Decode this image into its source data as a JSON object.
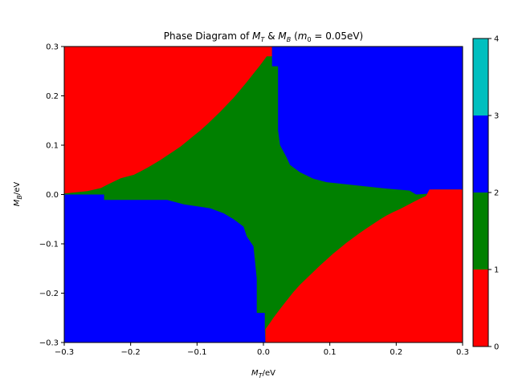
{
  "chart_data": {
    "type": "heatmap",
    "title": "Phase Diagram of M_T & M_B (m₀ = 0.05eV)",
    "title_parts": {
      "prefix": "Phase Diagram of ",
      "x_sym": "M",
      "x_sub": "T",
      "amp": " & ",
      "y_sym": "M",
      "y_sub": "B",
      "paren_open": " (",
      "m_sym": "m",
      "m_sub": "0",
      "rest": " = 0.05eV)"
    },
    "xlabel": {
      "sym": "M",
      "sub": "T",
      "unit": "/eV"
    },
    "ylabel": {
      "sym": "M",
      "sub": "B",
      "unit": "/eV"
    },
    "xlim": [
      -0.3,
      0.3
    ],
    "ylim": [
      -0.3,
      0.3
    ],
    "x_ticks": [
      "−0.3",
      "−0.2",
      "−0.1",
      "0.0",
      "0.1",
      "0.2",
      "0.3"
    ],
    "y_ticks": [
      "−0.3",
      "−0.2",
      "−0.1",
      "0.0",
      "0.1",
      "0.2",
      "0.3"
    ],
    "colorbar": {
      "range": [
        0,
        4
      ],
      "ticks": [
        "0",
        "1",
        "2",
        "3",
        "4"
      ],
      "levels": [
        {
          "from": 0,
          "to": 1,
          "color": "#ff0000"
        },
        {
          "from": 1,
          "to": 2,
          "color": "#008000"
        },
        {
          "from": 2,
          "to": 3,
          "color": "#0000ff"
        },
        {
          "from": 3,
          "to": 4,
          "color": "#00bfbf"
        }
      ]
    },
    "regions": [
      {
        "value": 0,
        "color": "#ff0000",
        "label": "upper-left",
        "points": [
          [
            -0.3,
            0.3
          ],
          [
            0.013,
            0.3
          ],
          [
            0.013,
            0.28
          ],
          [
            0.005,
            0.28
          ],
          [
            -0.005,
            0.262
          ],
          [
            -0.015,
            0.245
          ],
          [
            -0.025,
            0.228
          ],
          [
            -0.035,
            0.212
          ],
          [
            -0.045,
            0.196
          ],
          [
            -0.055,
            0.182
          ],
          [
            -0.065,
            0.168
          ],
          [
            -0.075,
            0.155
          ],
          [
            -0.085,
            0.142
          ],
          [
            -0.095,
            0.13
          ],
          [
            -0.105,
            0.119
          ],
          [
            -0.115,
            0.108
          ],
          [
            -0.125,
            0.097
          ],
          [
            -0.135,
            0.088
          ],
          [
            -0.145,
            0.079
          ],
          [
            -0.155,
            0.07
          ],
          [
            -0.165,
            0.062
          ],
          [
            -0.175,
            0.054
          ],
          [
            -0.185,
            0.047
          ],
          [
            -0.195,
            0.04
          ],
          [
            -0.215,
            0.033
          ],
          [
            -0.235,
            0.02
          ],
          [
            -0.245,
            0.013
          ],
          [
            -0.265,
            0.007
          ],
          [
            -0.3,
            0.002
          ]
        ]
      },
      {
        "value": 2,
        "color": "#0000ff",
        "label": "upper-right",
        "points": [
          [
            0.013,
            0.3
          ],
          [
            0.3,
            0.3
          ],
          [
            0.3,
            0.01
          ],
          [
            0.255,
            0.01
          ],
          [
            0.253,
            0.002
          ],
          [
            0.23,
            0.0
          ],
          [
            0.22,
            0.008
          ],
          [
            0.185,
            0.012
          ],
          [
            0.13,
            0.02
          ],
          [
            0.095,
            0.025
          ],
          [
            0.075,
            0.032
          ],
          [
            0.055,
            0.045
          ],
          [
            0.04,
            0.06
          ],
          [
            0.035,
            0.075
          ],
          [
            0.025,
            0.1
          ],
          [
            0.022,
            0.13
          ],
          [
            0.022,
            0.26
          ],
          [
            0.013,
            0.26
          ]
        ]
      },
      {
        "value": 2,
        "color": "#0000ff",
        "label": "lower-left",
        "points": [
          [
            -0.3,
            0.0
          ],
          [
            -0.24,
            0.0
          ],
          [
            -0.24,
            -0.011
          ],
          [
            -0.145,
            -0.011
          ],
          [
            -0.12,
            -0.02
          ],
          [
            -0.08,
            -0.028
          ],
          [
            -0.06,
            -0.038
          ],
          [
            -0.045,
            -0.05
          ],
          [
            -0.03,
            -0.065
          ],
          [
            -0.025,
            -0.085
          ],
          [
            -0.015,
            -0.105
          ],
          [
            -0.01,
            -0.17
          ],
          [
            -0.01,
            -0.24
          ],
          [
            0.002,
            -0.24
          ],
          [
            0.002,
            -0.27
          ],
          [
            0.003,
            -0.3
          ],
          [
            -0.3,
            -0.3
          ]
        ]
      },
      {
        "value": 0,
        "color": "#ff0000",
        "label": "lower-right",
        "points": [
          [
            0.3,
            0.01
          ],
          [
            0.3,
            -0.3
          ],
          [
            0.003,
            -0.3
          ],
          [
            0.003,
            -0.273
          ],
          [
            0.01,
            -0.26
          ],
          [
            0.015,
            -0.25
          ],
          [
            0.025,
            -0.232
          ],
          [
            0.035,
            -0.215
          ],
          [
            0.045,
            -0.198
          ],
          [
            0.055,
            -0.183
          ],
          [
            0.065,
            -0.17
          ],
          [
            0.075,
            -0.157
          ],
          [
            0.085,
            -0.144
          ],
          [
            0.095,
            -0.132
          ],
          [
            0.105,
            -0.12
          ],
          [
            0.115,
            -0.109
          ],
          [
            0.125,
            -0.098
          ],
          [
            0.135,
            -0.088
          ],
          [
            0.145,
            -0.078
          ],
          [
            0.155,
            -0.069
          ],
          [
            0.165,
            -0.06
          ],
          [
            0.175,
            -0.051
          ],
          [
            0.185,
            -0.043
          ],
          [
            0.195,
            -0.036
          ],
          [
            0.205,
            -0.03
          ],
          [
            0.215,
            -0.023
          ],
          [
            0.225,
            -0.016
          ],
          [
            0.235,
            -0.009
          ],
          [
            0.245,
            -0.003
          ],
          [
            0.25,
            0.01
          ]
        ]
      }
    ],
    "background_region": {
      "value": 1,
      "color": "#008000"
    }
  }
}
